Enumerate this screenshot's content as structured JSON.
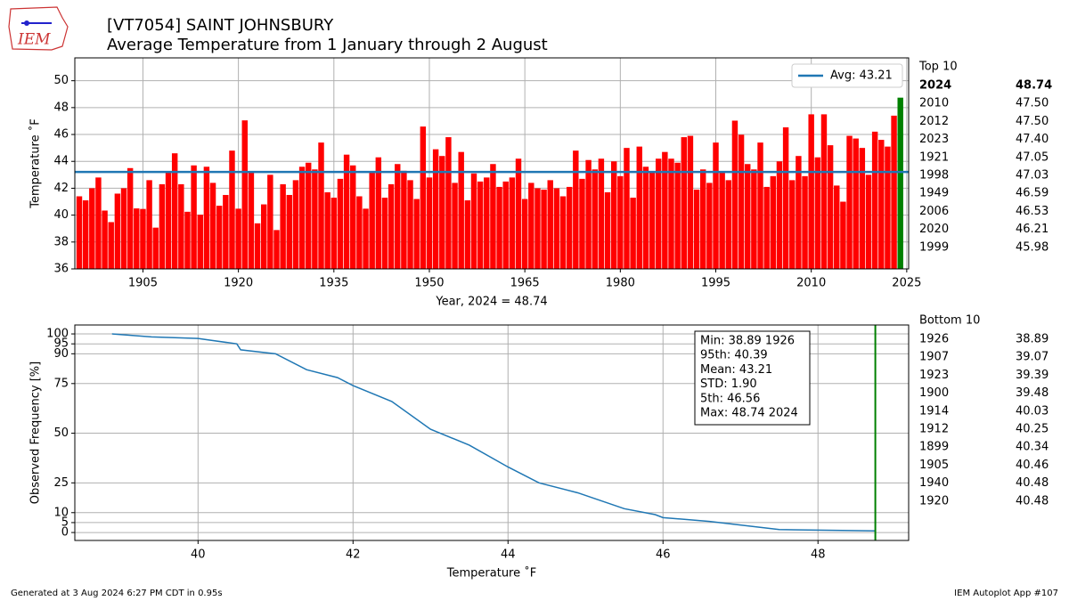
{
  "header": {
    "title": "[VT7054] SAINT JOHNSBURY",
    "subtitle": "Average Temperature from 1 January through 2 August",
    "logo": "IEM"
  },
  "chart_data": [
    {
      "type": "bar",
      "xlabel": "Year, 2024 = 48.74",
      "ylabel": "Temperature ˚F",
      "bar_color": "red",
      "highlight_color": "green",
      "grid": true,
      "x": [
        1895,
        1896,
        1897,
        1898,
        1899,
        1900,
        1901,
        1902,
        1903,
        1904,
        1905,
        1906,
        1907,
        1908,
        1909,
        1910,
        1911,
        1912,
        1913,
        1914,
        1915,
        1916,
        1917,
        1918,
        1919,
        1920,
        1921,
        1922,
        1923,
        1924,
        1925,
        1926,
        1927,
        1928,
        1929,
        1930,
        1931,
        1932,
        1933,
        1934,
        1935,
        1936,
        1937,
        1938,
        1939,
        1940,
        1941,
        1942,
        1943,
        1944,
        1945,
        1946,
        1947,
        1948,
        1949,
        1950,
        1951,
        1952,
        1953,
        1954,
        1955,
        1956,
        1957,
        1958,
        1959,
        1960,
        1961,
        1962,
        1963,
        1964,
        1965,
        1966,
        1967,
        1968,
        1969,
        1970,
        1971,
        1972,
        1973,
        1974,
        1975,
        1976,
        1977,
        1978,
        1979,
        1980,
        1981,
        1982,
        1983,
        1984,
        1985,
        1986,
        1987,
        1988,
        1989,
        1990,
        1991,
        1992,
        1993,
        1994,
        1995,
        1996,
        1997,
        1998,
        1999,
        2000,
        2001,
        2002,
        2003,
        2004,
        2005,
        2006,
        2007,
        2008,
        2009,
        2010,
        2011,
        2012,
        2013,
        2014,
        2015,
        2016,
        2017,
        2018,
        2019,
        2020,
        2021,
        2022,
        2023,
        2024
      ],
      "values": [
        41.4,
        41.1,
        42.0,
        42.8,
        40.34,
        39.48,
        41.6,
        42.0,
        43.5,
        40.5,
        40.46,
        42.6,
        39.07,
        42.3,
        43.2,
        44.6,
        42.3,
        40.25,
        43.7,
        40.03,
        43.6,
        42.4,
        40.7,
        41.5,
        44.8,
        40.48,
        47.05,
        43.2,
        39.39,
        40.8,
        43.0,
        38.89,
        42.3,
        41.5,
        42.6,
        43.6,
        43.9,
        43.4,
        45.4,
        41.7,
        41.3,
        42.7,
        44.5,
        43.7,
        41.4,
        40.48,
        43.2,
        44.3,
        41.3,
        42.3,
        43.8,
        43.3,
        42.6,
        41.2,
        46.59,
        42.8,
        44.9,
        44.4,
        45.8,
        42.4,
        44.7,
        41.1,
        43.1,
        42.5,
        42.8,
        43.8,
        42.1,
        42.5,
        42.8,
        44.2,
        41.2,
        42.4,
        42.0,
        41.9,
        42.6,
        42.0,
        41.4,
        42.1,
        44.8,
        42.7,
        44.1,
        43.4,
        44.2,
        41.7,
        44.0,
        42.9,
        45.0,
        41.3,
        45.1,
        43.6,
        43.2,
        44.2,
        44.7,
        44.2,
        43.9,
        45.8,
        45.9,
        41.9,
        43.4,
        42.4,
        45.4,
        43.2,
        42.6,
        47.03,
        45.98,
        43.8,
        43.4,
        45.4,
        42.1,
        42.9,
        44.0,
        46.53,
        42.6,
        44.4,
        42.9,
        47.5,
        44.3,
        47.5,
        45.2,
        42.2,
        41.0,
        45.9,
        45.7,
        45.0,
        43.0,
        46.21,
        45.6,
        45.1,
        47.4,
        48.74
      ],
      "xlim": [
        1894.3,
        2025.3
      ],
      "xticks": [
        1905,
        1920,
        1935,
        1950,
        1965,
        1980,
        1995,
        2010,
        2025
      ],
      "ylim": [
        36,
        51.7
      ],
      "yticks": [
        36,
        38,
        40,
        42,
        44,
        46,
        48,
        50
      ],
      "avg": {
        "value": 43.21,
        "label": "Avg: 43.21",
        "color": "#1f77b4"
      },
      "legend": "upper right"
    },
    {
      "type": "line",
      "xlabel": "Temperature ˚F",
      "ylabel": "Observed Frequency [%]",
      "grid": true,
      "series": [
        {
          "color": "#1f77b4",
          "x": [
            38.89,
            39.4,
            40.0,
            40.5,
            40.55,
            41.0,
            41.4,
            41.8,
            42.0,
            42.5,
            43.0,
            43.5,
            44.0,
            44.4,
            44.9,
            45.5,
            45.9,
            46.0,
            46.6,
            47.5,
            48.74
          ],
          "values": [
            100,
            98.5,
            97.7,
            95,
            92,
            90,
            82,
            78,
            74,
            66,
            52,
            44,
            33,
            25,
            20,
            12,
            9,
            7.5,
            5.6,
            1.5,
            0.8
          ]
        }
      ],
      "vline": {
        "value": 48.74,
        "color": "green"
      },
      "xlim": [
        38.41,
        49.17
      ],
      "xticks": [
        40,
        42,
        44,
        46,
        48
      ],
      "ylim": [
        -4,
        104.5
      ],
      "yticks": [
        0,
        5,
        10,
        25,
        50,
        75,
        90,
        95,
        100
      ],
      "stats": [
        "Min: 38.89 1926",
        "95th: 40.39",
        "Mean: 43.21",
        "STD: 1.90",
        "5th: 46.56",
        "Max: 48.74 2024"
      ]
    }
  ],
  "top10": {
    "title": "Top 10",
    "rows": [
      [
        "2024",
        "48.74"
      ],
      [
        "2010",
        "47.50"
      ],
      [
        "2012",
        "47.50"
      ],
      [
        "2023",
        "47.40"
      ],
      [
        "1921",
        "47.05"
      ],
      [
        "1998",
        "47.03"
      ],
      [
        "1949",
        "46.59"
      ],
      [
        "2006",
        "46.53"
      ],
      [
        "2020",
        "46.21"
      ],
      [
        "1999",
        "45.98"
      ]
    ]
  },
  "bottom10": {
    "title": "Bottom 10",
    "rows": [
      [
        "1926",
        "38.89"
      ],
      [
        "1907",
        "39.07"
      ],
      [
        "1923",
        "39.39"
      ],
      [
        "1900",
        "39.48"
      ],
      [
        "1914",
        "40.03"
      ],
      [
        "1912",
        "40.25"
      ],
      [
        "1899",
        "40.34"
      ],
      [
        "1905",
        "40.46"
      ],
      [
        "1940",
        "40.48"
      ],
      [
        "1920",
        "40.48"
      ]
    ]
  },
  "footer": {
    "left": "Generated at 3 Aug 2024 6:27 PM CDT in 0.95s",
    "right": "IEM Autoplot App #107"
  }
}
